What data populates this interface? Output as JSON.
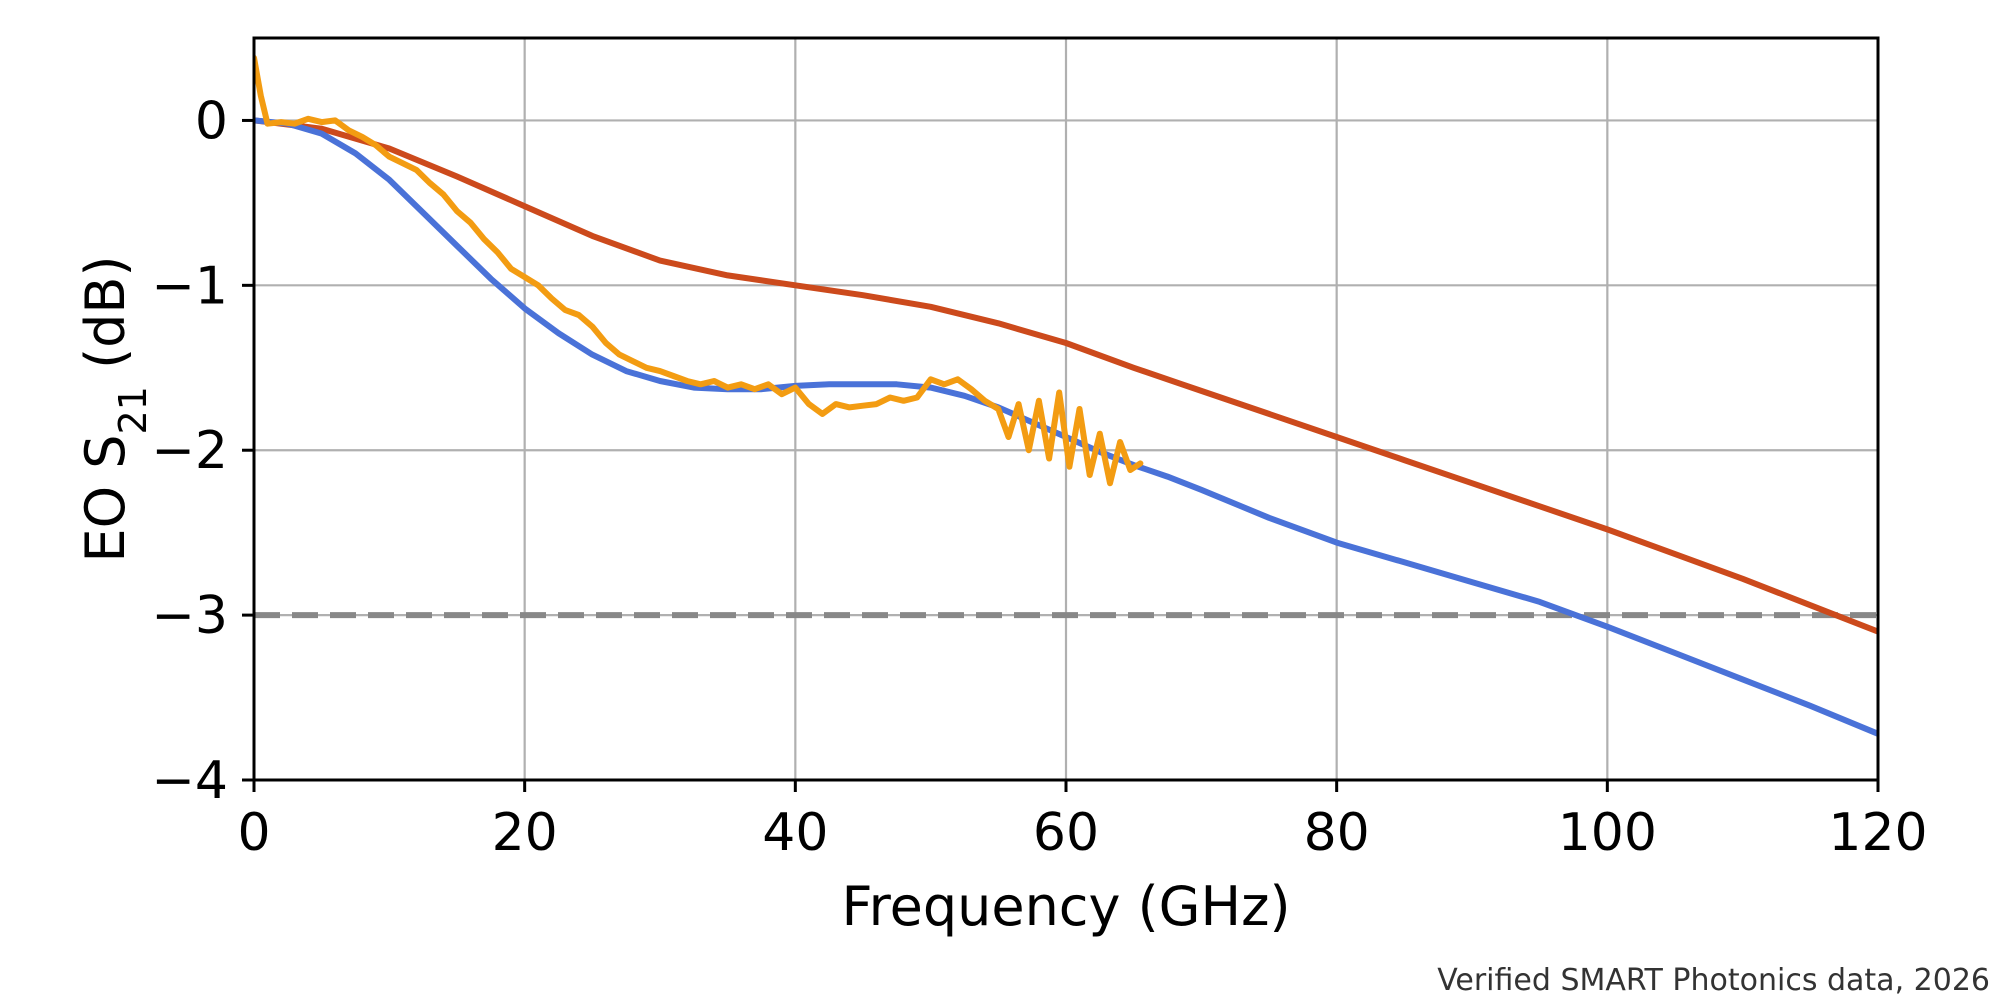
{
  "chart_data": {
    "type": "line",
    "title": "",
    "xlabel": "Frequency (GHz)",
    "ylabel_parts": {
      "prefix": "EO S",
      "subscript": "21",
      "suffix": " (dB)"
    },
    "xlim": [
      0,
      120
    ],
    "ylim": [
      -4,
      0.5
    ],
    "x_ticks": [
      0,
      20,
      40,
      60,
      80,
      100,
      120
    ],
    "x_tick_labels": [
      "0",
      "20",
      "40",
      "60",
      "80",
      "100",
      "120"
    ],
    "y_ticks": [
      0,
      -1,
      -2,
      -3,
      -4
    ],
    "y_tick_labels": [
      "0",
      "−1",
      "−2",
      "−3",
      "−4"
    ],
    "grid": true,
    "reference_line": {
      "y": -3,
      "style": "dashed",
      "color": "#888888"
    },
    "series": [
      {
        "color": "#cc4a1c",
        "x": [
          0,
          5,
          10,
          15,
          20,
          25,
          30,
          35,
          40,
          45,
          50,
          55,
          60,
          65,
          70,
          75,
          80,
          85,
          90,
          95,
          100,
          105,
          110,
          115,
          120
        ],
        "y": [
          0,
          -0.05,
          -0.17,
          -0.34,
          -0.52,
          -0.7,
          -0.85,
          -0.94,
          -1.0,
          -1.06,
          -1.13,
          -1.23,
          -1.35,
          -1.5,
          -1.64,
          -1.78,
          -1.92,
          -2.06,
          -2.2,
          -2.34,
          -2.48,
          -2.63,
          -2.78,
          -2.94,
          -3.1
        ]
      },
      {
        "color": "#4a72d8",
        "x": [
          0,
          2.5,
          5,
          7.5,
          10,
          12.5,
          15,
          17.5,
          20,
          22.5,
          25,
          27.5,
          30,
          32.5,
          35,
          37.5,
          40,
          42.5,
          45,
          47.5,
          50,
          52.5,
          55,
          57.5,
          60,
          62.5,
          65,
          67.5,
          70,
          75,
          80,
          85,
          90,
          95,
          100,
          105,
          110,
          115,
          120
        ],
        "y": [
          0,
          -0.02,
          -0.08,
          -0.2,
          -0.36,
          -0.56,
          -0.76,
          -0.96,
          -1.14,
          -1.29,
          -1.42,
          -1.52,
          -1.58,
          -1.62,
          -1.63,
          -1.63,
          -1.61,
          -1.6,
          -1.6,
          -1.6,
          -1.62,
          -1.67,
          -1.74,
          -1.83,
          -1.92,
          -2.01,
          -2.09,
          -2.16,
          -2.24,
          -2.41,
          -2.56,
          -2.68,
          -2.8,
          -2.92,
          -3.07,
          -3.23,
          -3.39,
          -3.55,
          -3.72
        ]
      },
      {
        "color": "#f39c12",
        "x": [
          0,
          0.5,
          1,
          2,
          3,
          4,
          5,
          6,
          7,
          8,
          9,
          10,
          11,
          12,
          13,
          14,
          15,
          16,
          17,
          18,
          19,
          20,
          21,
          22,
          23,
          24,
          25,
          26,
          27,
          28,
          29,
          30,
          31,
          32,
          33,
          34,
          35,
          36,
          37,
          38,
          39,
          40,
          41,
          42,
          43,
          44,
          45,
          46,
          47,
          48,
          49,
          50,
          51,
          52,
          53,
          54,
          55,
          55.75,
          56.5,
          57.25,
          58,
          58.75,
          59.5,
          60.25,
          61,
          61.75,
          62.5,
          63.25,
          64,
          64.75,
          65.5
        ],
        "y": [
          0.38,
          0.15,
          -0.02,
          -0.01,
          -0.02,
          0.01,
          -0.01,
          0.0,
          -0.06,
          -0.1,
          -0.15,
          -0.22,
          -0.26,
          -0.3,
          -0.38,
          -0.45,
          -0.55,
          -0.62,
          -0.72,
          -0.8,
          -0.9,
          -0.95,
          -1.0,
          -1.08,
          -1.15,
          -1.18,
          -1.25,
          -1.35,
          -1.42,
          -1.46,
          -1.5,
          -1.52,
          -1.55,
          -1.58,
          -1.6,
          -1.58,
          -1.62,
          -1.6,
          -1.63,
          -1.6,
          -1.66,
          -1.62,
          -1.72,
          -1.78,
          -1.72,
          -1.74,
          -1.73,
          -1.72,
          -1.68,
          -1.7,
          -1.68,
          -1.57,
          -1.6,
          -1.57,
          -1.63,
          -1.7,
          -1.75,
          -1.92,
          -1.72,
          -2.0,
          -1.7,
          -2.05,
          -1.65,
          -2.1,
          -1.75,
          -2.15,
          -1.9,
          -2.2,
          -1.95,
          -2.12,
          -2.08
        ]
      }
    ]
  },
  "source_note": "Verified SMART Photonics data, 2026"
}
